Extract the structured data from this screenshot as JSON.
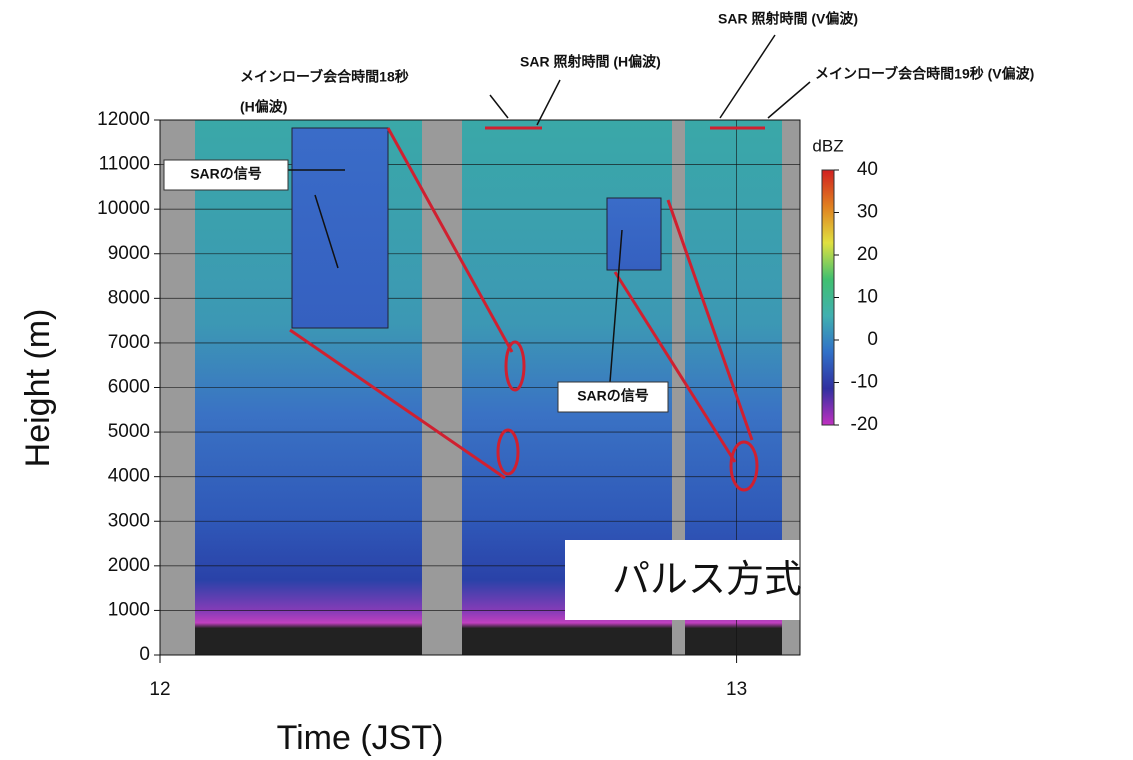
{
  "chart_data": {
    "type": "heatmap",
    "y_label": "Height (m)",
    "x_label": "Time (JST)",
    "ylim": [
      0,
      12000
    ],
    "yticks": [
      0,
      1000,
      2000,
      3000,
      4000,
      5000,
      6000,
      7000,
      8000,
      9000,
      10000,
      11000,
      12000
    ],
    "xlim": [
      12,
      13.11
    ],
    "xticks": [
      12,
      13
    ],
    "grid": true,
    "colorbar": {
      "label": "dBZ",
      "lim": [
        -20,
        40
      ],
      "ticks": [
        -20,
        -10,
        0,
        10,
        20,
        30,
        40
      ],
      "colors": [
        "#c030c0",
        "#3030a0",
        "#3070c8",
        "#40b0b0",
        "#40c070",
        "#e0e040",
        "#e08020",
        "#d02020"
      ]
    },
    "annotations": {
      "mainlobe_h": "メインローブ会合時間18秒",
      "mainlobe_h_pol": "(H偏波)",
      "sar_h": "SAR 照射時間 (H偏波)",
      "sar_v": "SAR 照射時間 (V偏波)",
      "mainlobe_v": "メインローブ会合時間19秒 (V偏波)",
      "signal_1": "SARの信号",
      "signal_2": "SARの信号",
      "method": "パルス方式"
    }
  }
}
